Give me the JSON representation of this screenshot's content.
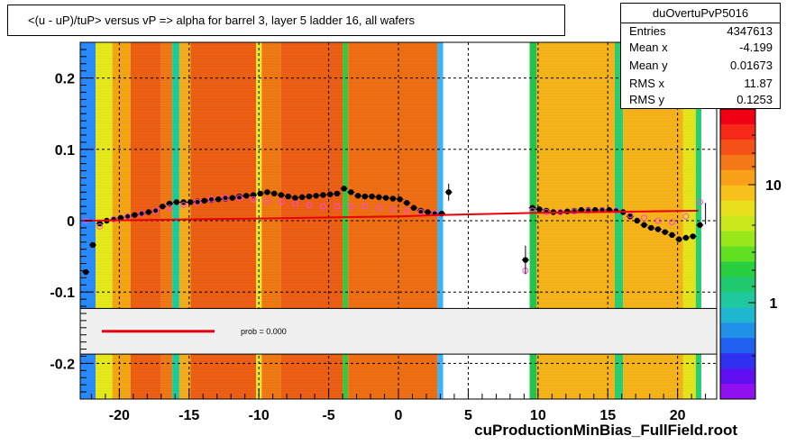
{
  "title": "<(u - uP)/tuP>  versus   vP => alpha for barrel 3, layer 5 ladder 16, all wafers",
  "stats": {
    "name": "duOvertuPvP5016",
    "rows": [
      {
        "label": "Entries",
        "value": "4347613"
      },
      {
        "label": "Mean x",
        "value": "-4.199"
      },
      {
        "label": "Mean y",
        "value": "0.01673"
      },
      {
        "label": "RMS x",
        "value": "11.87"
      },
      {
        "label": "RMS y",
        "value": "0.1253"
      }
    ]
  },
  "legend": {
    "label": "prob = 0.000",
    "color": "#e8000b"
  },
  "footer": "cuProductionMinBias_FullField.root",
  "colors": {
    "fit": "#e8000b",
    "profile": "#000000",
    "open_markers": "#ff44dd",
    "band_bg": "#f0f0f0"
  },
  "chart_data": {
    "type": "heatmap",
    "xlim": [
      -22.8,
      22.8
    ],
    "ylim": [
      -0.25,
      0.25
    ],
    "x_ticks": [
      "-20",
      "-15",
      "-10",
      "-5",
      "0",
      "5",
      "10",
      "15",
      "20"
    ],
    "y_ticks": [
      "0.2",
      "0.1",
      "0",
      "-0.1",
      "-0.2"
    ],
    "z_ticks": [
      "10",
      "1"
    ],
    "z_scale": "log",
    "grid": true,
    "heatmap_columns": [
      {
        "x0": -22.8,
        "x1": -21.7,
        "color": "#2a8cff"
      },
      {
        "x0": -21.7,
        "x1": -20.5,
        "color": "#e8ec1a"
      },
      {
        "x0": -20.5,
        "x1": -19.2,
        "color": "#f7a813"
      },
      {
        "x0": -19.2,
        "x1": -17.0,
        "color": "#f06015"
      },
      {
        "x0": -17.0,
        "x1": -16.2,
        "color": "#f47a14"
      },
      {
        "x0": -16.2,
        "x1": -15.7,
        "color": "#18d0a0"
      },
      {
        "x0": -15.7,
        "x1": -14.9,
        "color": "#f7b01a"
      },
      {
        "x0": -14.9,
        "x1": -10.2,
        "color": "#f06015"
      },
      {
        "x0": -10.2,
        "x1": -9.8,
        "color": "#f0e830"
      },
      {
        "x0": -9.8,
        "x1": -8.4,
        "color": "#f47a14"
      },
      {
        "x0": -8.4,
        "x1": -4.0,
        "color": "#f06015"
      },
      {
        "x0": -4.0,
        "x1": -3.6,
        "color": "#40c840"
      },
      {
        "x0": -3.6,
        "x1": 2.8,
        "color": "#f27014"
      },
      {
        "x0": 2.8,
        "x1": 3.2,
        "color": "#39b7ff"
      },
      {
        "x0": 9.4,
        "x1": 9.9,
        "color": "#21c84b"
      },
      {
        "x0": 9.9,
        "x1": 15.5,
        "color": "#f7b41a"
      },
      {
        "x0": 15.5,
        "x1": 16.1,
        "color": "#2ad070"
      },
      {
        "x0": 16.1,
        "x1": 20.4,
        "color": "#f7b41a"
      },
      {
        "x0": 20.4,
        "x1": 21.3,
        "color": "#e6e61c"
      },
      {
        "x0": 21.3,
        "x1": 21.7,
        "color": "#2ad070"
      }
    ],
    "white_band": {
      "y_from": -0.123,
      "y_to": -0.187
    },
    "series": [
      {
        "name": "profile",
        "marker": "filled-circle",
        "x": [
          -22.4,
          -21.9,
          -21.4,
          -20.9,
          -20.4,
          -19.9,
          -19.4,
          -18.9,
          -18.4,
          -17.9,
          -17.4,
          -16.9,
          -16.4,
          -15.9,
          -15.4,
          -14.9,
          -14.4,
          -13.9,
          -13.4,
          -12.9,
          -12.4,
          -11.9,
          -11.4,
          -10.9,
          -10.4,
          -9.9,
          -9.4,
          -8.9,
          -8.4,
          -7.9,
          -7.4,
          -6.9,
          -6.4,
          -5.9,
          -5.4,
          -4.9,
          -4.4,
          -3.9,
          -3.4,
          -2.9,
          -2.4,
          -1.9,
          -1.4,
          -0.9,
          -0.4,
          0.1,
          0.6,
          1.1,
          1.6,
          2.1,
          2.6,
          3.1,
          3.6,
          4.1,
          4.6,
          5.1,
          5.6,
          6.1,
          6.6,
          7.1,
          7.6,
          8.1,
          8.6,
          9.1,
          9.6,
          10.1,
          10.6,
          11.1,
          11.6,
          12.1,
          12.6,
          13.1,
          13.6,
          14.1,
          14.6,
          15.1,
          15.6,
          16.1,
          16.6,
          17.1,
          17.6,
          18.1,
          18.6,
          19.1,
          19.6,
          20.1,
          20.6,
          21.1,
          21.6
        ],
        "y": [
          -0.072,
          -0.034,
          -0.004,
          0.0,
          0.002,
          0.004,
          0.006,
          0.008,
          0.01,
          0.012,
          0.014,
          0.02,
          0.024,
          0.026,
          0.026,
          0.026,
          0.027,
          0.028,
          0.029,
          0.03,
          0.031,
          0.032,
          0.034,
          0.035,
          0.036,
          0.038,
          0.04,
          0.038,
          0.036,
          0.034,
          0.032,
          0.033,
          0.034,
          0.035,
          0.036,
          0.037,
          0.038,
          0.045,
          0.04,
          0.035,
          0.034,
          0.034,
          0.033,
          0.032,
          0.031,
          0.03,
          0.025,
          0.018,
          0.014,
          0.012,
          0.01,
          0.01,
          0.04,
          null,
          null,
          null,
          null,
          null,
          null,
          null,
          null,
          null,
          null,
          -0.055,
          0.018,
          0.016,
          0.014,
          0.012,
          0.012,
          0.013,
          0.014,
          0.015,
          0.015,
          0.015,
          0.015,
          0.015,
          0.014,
          0.012,
          0.006,
          0.0,
          -0.006,
          -0.01,
          -0.012,
          -0.016,
          -0.02,
          -0.026,
          -0.024,
          -0.022,
          -0.006
        ]
      },
      {
        "name": "open markers",
        "marker": "open-circle",
        "x": [
          -22.4,
          -21.4,
          -20.4,
          -19.4,
          -18.4,
          -17.4,
          -16.4,
          -15.4,
          -14.4,
          -13.4,
          -12.4,
          -11.4,
          -10.4,
          -9.4,
          -8.4,
          -7.4,
          -6.4,
          -5.4,
          -4.4,
          -3.4,
          -2.4,
          -1.4,
          -0.4,
          0.6,
          1.6,
          2.6,
          9.1,
          9.6,
          10.6,
          11.6,
          12.6,
          13.6,
          14.6,
          15.6,
          16.6,
          17.6,
          18.6,
          19.6,
          20.6,
          21.6
        ],
        "y": [
          0.0,
          -0.008,
          0.002,
          0.006,
          0.01,
          0.014,
          0.018,
          0.022,
          0.026,
          0.03,
          0.032,
          0.032,
          0.03,
          0.028,
          0.026,
          0.024,
          0.022,
          0.02,
          0.02,
          0.02,
          0.02,
          0.018,
          0.016,
          0.014,
          0.012,
          0.01,
          -0.07,
          0.014,
          0.012,
          0.012,
          0.013,
          0.014,
          0.015,
          0.014,
          0.008,
          0.004,
          0.0,
          -0.002,
          0.006,
          0.026
        ]
      },
      {
        "name": "fit",
        "marker": "line",
        "x": [
          -22.5,
          -10,
          0,
          3.2,
          10,
          21.5
        ],
        "y": [
          0.0,
          0.003,
          0.006,
          0.008,
          0.011,
          0.014
        ]
      }
    ]
  }
}
